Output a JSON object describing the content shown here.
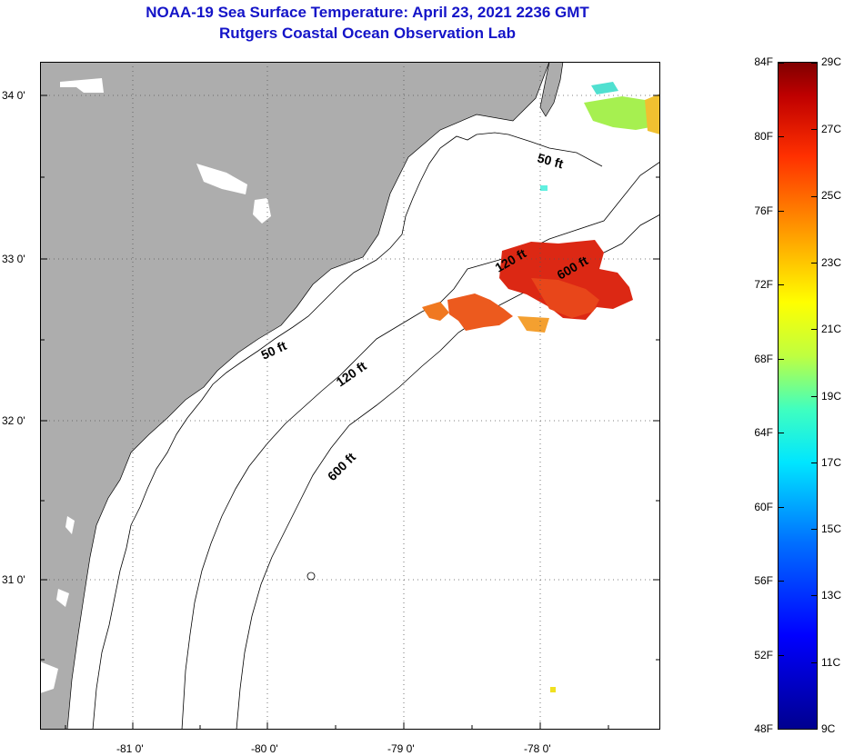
{
  "title": {
    "line1": "NOAA-19 Sea Surface Temperature:  April 23, 2021 2236 GMT",
    "line2": "Rutgers Coastal Ocean Observation Lab"
  },
  "map": {
    "lat_labels": [
      "34 0'",
      "33 0'",
      "32 0'",
      "31 0'"
    ],
    "lon_labels": [
      "-81 0'",
      "-80 0'",
      "-79 0'",
      "-78 0'"
    ],
    "contour_labels": [
      "50 ft",
      "50 ft",
      "120 ft",
      "120 ft",
      "600 ft",
      "600 ft"
    ]
  },
  "colorbar": {
    "fahrenheit": [
      "84F",
      "80F",
      "76F",
      "72F",
      "68F",
      "64F",
      "60F",
      "56F",
      "52F",
      "48F"
    ],
    "celsius": [
      "29C",
      "27C",
      "25C",
      "23C",
      "21C",
      "19C",
      "17C",
      "15C",
      "13C",
      "11C",
      "9C"
    ]
  },
  "colors": {
    "land": "#adadad",
    "title": "#1414c8",
    "sst_warm": "#e63a14",
    "sst_hot": "#d21e0a"
  }
}
